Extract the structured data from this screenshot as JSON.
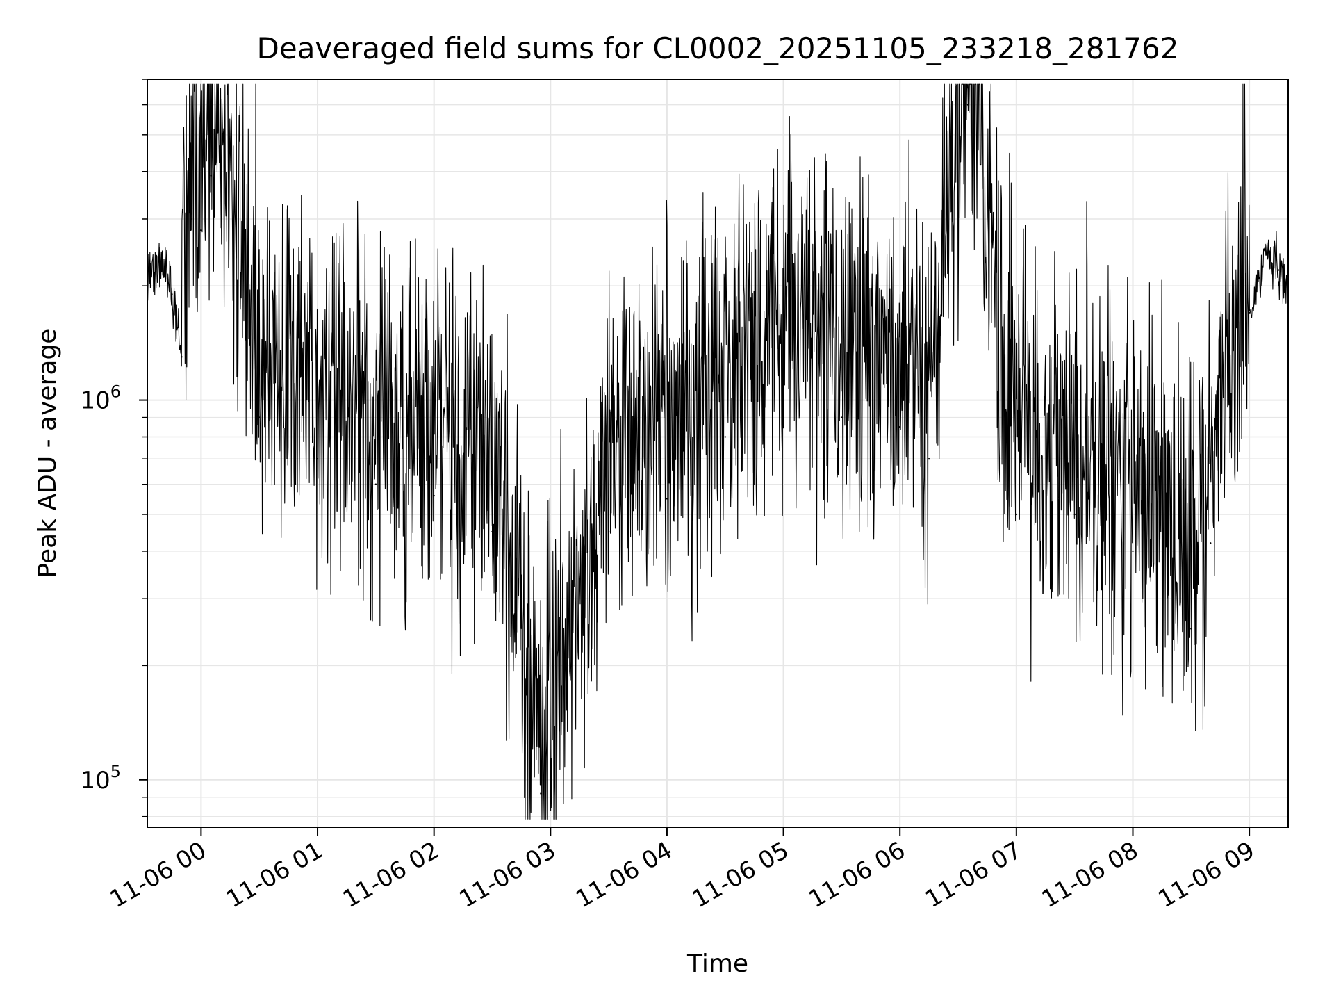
{
  "chart_data": {
    "type": "line",
    "title": "Deaveraged field sums for CL0002_20251105_233218_281762",
    "xlabel": "Time",
    "ylabel": "Peak ADU - average",
    "yscale": "log",
    "ylim": [
      75000,
      7000000
    ],
    "xlim": [
      "2025-11-05 23:32:18",
      "2025-11-06 09:20:00"
    ],
    "x_ticks": [
      "11-06 00",
      "11-06 01",
      "11-06 02",
      "11-06 03",
      "11-06 04",
      "11-06 05",
      "11-06 06",
      "11-06 07",
      "11-06 08",
      "11-06 09"
    ],
    "y_ticks": [
      {
        "value": 100000,
        "base": "10",
        "exp": "5"
      },
      {
        "value": 1000000,
        "base": "10",
        "exp": "6"
      }
    ],
    "grid": true,
    "line_color": "#000000",
    "grid_color": "#e6e6e6",
    "series": [
      {
        "points": [
          [
            "2025-11-05 23:32:18",
            2100000
          ],
          [
            "2025-11-05 23:40:00",
            2300000
          ],
          [
            "2025-11-05 23:45:00",
            1900000
          ],
          [
            "2025-11-05 23:50:00",
            1300000
          ],
          [
            "2025-11-05 23:55:00",
            3000000
          ],
          [
            "2025-11-06 00:00:00",
            2800000
          ],
          [
            "2025-11-06 00:05:00",
            3900000
          ],
          [
            "2025-11-06 00:30:00",
            900000
          ],
          [
            "2025-11-06 01:00:00",
            700000
          ],
          [
            "2025-11-06 01:30:00",
            600000
          ],
          [
            "2025-11-06 02:00:00",
            560000
          ],
          [
            "2025-11-06 02:30:00",
            450000
          ],
          [
            "2025-11-06 02:55:00",
            92000
          ],
          [
            "2025-11-06 03:30:00",
            450000
          ],
          [
            "2025-11-06 04:00:00",
            550000
          ],
          [
            "2025-11-06 04:30:00",
            800000
          ],
          [
            "2025-11-06 05:00:00",
            1050000
          ],
          [
            "2025-11-06 05:30:00",
            900000
          ],
          [
            "2025-11-06 06:00:00",
            850000
          ],
          [
            "2025-11-06 06:15:00",
            700000
          ],
          [
            "2025-11-06 06:35:00",
            6000000
          ],
          [
            "2025-11-06 07:00:00",
            500000
          ],
          [
            "2025-11-06 07:30:00",
            500000
          ],
          [
            "2025-11-06 08:00:00",
            400000
          ],
          [
            "2025-11-06 08:30:00",
            250000
          ],
          [
            "2025-11-06 08:40:00",
            420000
          ],
          [
            "2025-11-06 08:50:00",
            900000
          ],
          [
            "2025-11-06 09:00:00",
            1700000
          ],
          [
            "2025-11-06 09:05:00",
            2100000
          ],
          [
            "2025-11-06 09:10:00",
            2500000
          ],
          [
            "2025-11-06 09:15:00",
            2200000
          ],
          [
            "2025-11-06 09:20:00",
            2100000
          ]
        ]
      }
    ]
  }
}
